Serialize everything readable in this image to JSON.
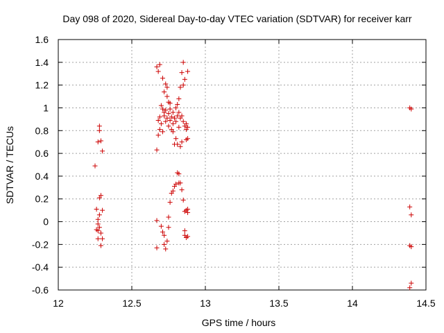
{
  "chart_data": {
    "type": "scatter",
    "title": "Day 098 of 2020, Sidereal Day-to-day VTEC variation (SDTVAR) for receiver karr",
    "xlabel": "GPS time / hours",
    "ylabel": "SDTVAR / TECUs",
    "xlim": [
      12,
      14.5
    ],
    "ylim": [
      -0.6,
      1.6
    ],
    "xticks": [
      12,
      12.5,
      13,
      13.5,
      14,
      14.5
    ],
    "xtick_labels": [
      "12",
      "12.5",
      "13",
      "13.5",
      "14",
      "14.5"
    ],
    "yticks": [
      -0.6,
      -0.4,
      -0.2,
      0,
      0.2,
      0.4,
      0.6,
      0.8,
      1,
      1.2,
      1.4,
      1.6
    ],
    "ytick_labels": [
      "-0.6",
      "-0.4",
      "-0.2",
      "0",
      "0.2",
      "0.4",
      "0.6",
      "0.8",
      "1",
      "1.2",
      "1.4",
      "1.6"
    ],
    "grid": true,
    "marker": "+",
    "color": "#cc0000",
    "series": [
      {
        "name": "SDTVAR",
        "points": [
          [
            12.25,
            0.49
          ],
          [
            12.26,
            0.11
          ],
          [
            12.27,
            0.7
          ],
          [
            12.27,
            -0.02
          ],
          [
            12.27,
            -0.08
          ],
          [
            12.27,
            -0.15
          ],
          [
            12.28,
            0.8
          ],
          [
            12.28,
            0.84
          ],
          [
            12.28,
            0.21
          ],
          [
            12.28,
            0.06
          ],
          [
            12.28,
            -0.05
          ],
          [
            12.29,
            0.71
          ],
          [
            12.29,
            0.23
          ],
          [
            12.29,
            -0.1
          ],
          [
            12.29,
            -0.21
          ],
          [
            12.3,
            0.62
          ],
          [
            12.3,
            0.1
          ],
          [
            12.3,
            -0.15
          ],
          [
            12.26,
            -0.07
          ],
          [
            12.27,
            0.02
          ],
          [
            12.67,
            0.63
          ],
          [
            12.67,
            0.01
          ],
          [
            12.67,
            -0.23
          ],
          [
            12.67,
            1.36
          ],
          [
            12.68,
            1.32
          ],
          [
            12.68,
            0.89
          ],
          [
            12.68,
            0.76
          ],
          [
            12.69,
            0.92
          ],
          [
            12.69,
            1.38
          ],
          [
            12.69,
            0.81
          ],
          [
            12.7,
            1.02
          ],
          [
            12.7,
            -0.04
          ],
          [
            12.7,
            0.86
          ],
          [
            12.71,
            1.26
          ],
          [
            12.71,
            0.99
          ],
          [
            12.71,
            0.79
          ],
          [
            12.71,
            -0.09
          ],
          [
            12.72,
            0.93
          ],
          [
            12.72,
            0.96
          ],
          [
            12.72,
            1.14
          ],
          [
            12.72,
            -0.12
          ],
          [
            12.72,
            -0.2
          ],
          [
            12.73,
            0.98
          ],
          [
            12.73,
            0.88
          ],
          [
            12.73,
            1.21
          ],
          [
            12.73,
            -0.24
          ],
          [
            12.74,
            1.18
          ],
          [
            12.74,
            0.91
          ],
          [
            12.74,
            1.1
          ],
          [
            12.74,
            -0.17
          ],
          [
            12.75,
            0.84
          ],
          [
            12.75,
            0.95
          ],
          [
            12.75,
            1.05
          ],
          [
            12.75,
            -0.05
          ],
          [
            12.75,
            0.04
          ],
          [
            12.76,
            0.99
          ],
          [
            12.76,
            0.89
          ],
          [
            12.76,
            1.04
          ],
          [
            12.76,
            0.17
          ],
          [
            12.77,
            0.81
          ],
          [
            12.77,
            0.92
          ],
          [
            12.77,
            0.25
          ],
          [
            12.78,
            0.96
          ],
          [
            12.78,
            0.86
          ],
          [
            12.78,
            0.27
          ],
          [
            12.78,
            0.79
          ],
          [
            12.79,
            0.68
          ],
          [
            12.79,
            0.91
          ],
          [
            12.79,
            0.31
          ],
          [
            12.8,
            1.0
          ],
          [
            12.8,
            0.88
          ],
          [
            12.8,
            0.33
          ],
          [
            12.8,
            0.73
          ],
          [
            12.81,
            0.93
          ],
          [
            12.81,
            1.03
          ],
          [
            12.81,
            0.43
          ],
          [
            12.81,
            0.68
          ],
          [
            12.82,
            0.42
          ],
          [
            12.82,
            0.34
          ],
          [
            12.82,
            0.83
          ],
          [
            12.82,
            1.08
          ],
          [
            12.82,
            0.96
          ],
          [
            12.83,
            0.66
          ],
          [
            12.83,
            1.18
          ],
          [
            12.83,
            0.34
          ],
          [
            12.83,
            0.91
          ],
          [
            12.84,
            1.31
          ],
          [
            12.84,
            0.7
          ],
          [
            12.84,
            0.28
          ],
          [
            12.84,
            0.93
          ],
          [
            12.85,
            1.4
          ],
          [
            12.85,
            1.2
          ],
          [
            12.85,
            0.19
          ],
          [
            12.85,
            0.88
          ],
          [
            12.86,
            1.25
          ],
          [
            12.86,
            0.84
          ],
          [
            12.86,
            0.09
          ],
          [
            12.86,
            -0.08
          ],
          [
            12.86,
            -0.12
          ],
          [
            12.87,
            0.72
          ],
          [
            12.87,
            0.81
          ],
          [
            12.87,
            0.86
          ],
          [
            12.87,
            0.1
          ],
          [
            12.87,
            -0.14
          ],
          [
            12.88,
            1.32
          ],
          [
            12.88,
            0.73
          ],
          [
            12.88,
            0.83
          ],
          [
            12.88,
            0.11
          ],
          [
            12.88,
            -0.13
          ],
          [
            12.88,
            0.08
          ],
          [
            14.39,
            1.0
          ],
          [
            14.39,
            0.13
          ],
          [
            14.39,
            -0.21
          ],
          [
            14.4,
            0.99
          ],
          [
            14.4,
            -0.22
          ],
          [
            14.4,
            0.06
          ],
          [
            14.4,
            -0.54
          ],
          [
            14.39,
            -0.58
          ]
        ]
      }
    ]
  }
}
